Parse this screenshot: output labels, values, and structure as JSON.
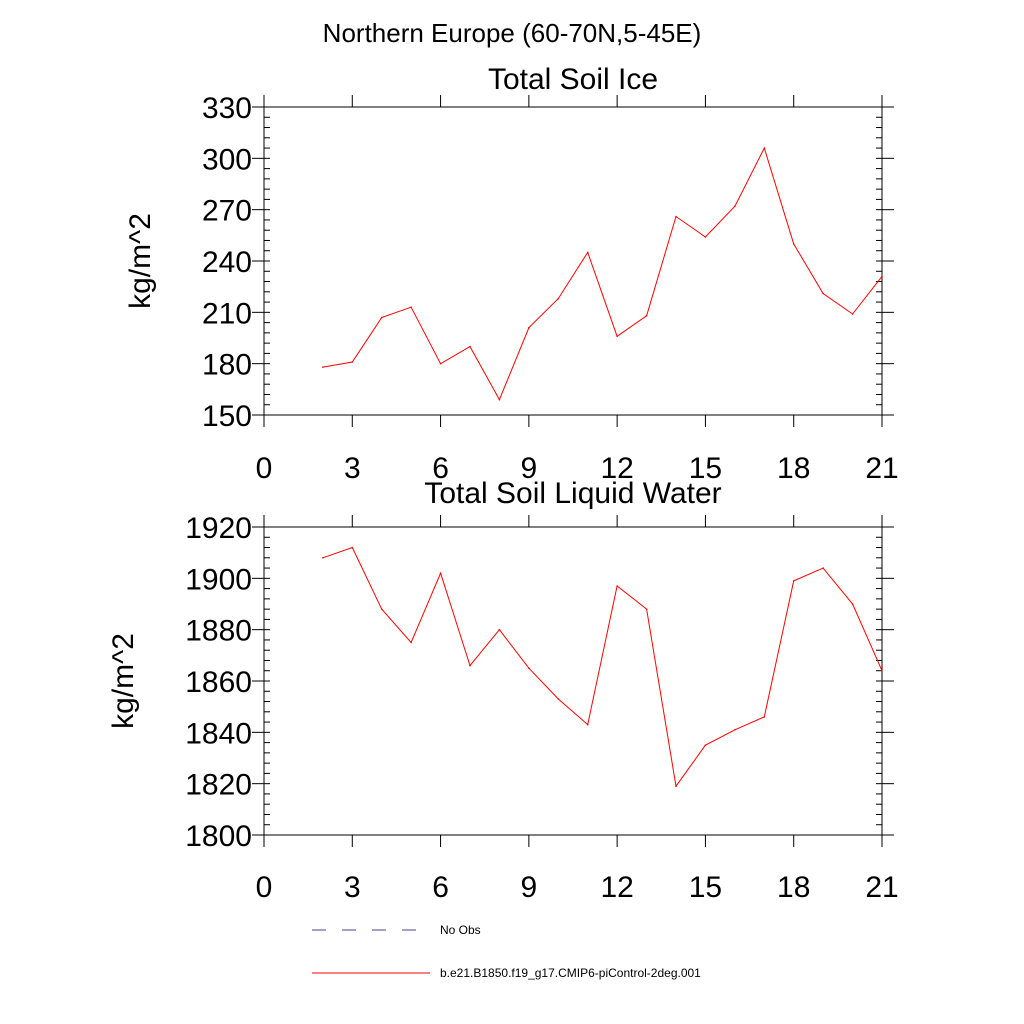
{
  "figure": {
    "title": "Northern Europe (60-70N,5-45E)"
  },
  "chart_data": [
    {
      "type": "line",
      "title": "Total Soil Ice",
      "xlabel": "",
      "ylabel": "kg/m^2",
      "xlim": [
        0,
        21
      ],
      "ylim": [
        150,
        330
      ],
      "xticks": [
        0,
        3,
        6,
        9,
        12,
        15,
        18,
        21
      ],
      "yticks": [
        150,
        180,
        210,
        240,
        270,
        300,
        330
      ],
      "x": [
        2,
        3,
        4,
        5,
        6,
        7,
        8,
        9,
        10,
        11,
        12,
        13,
        14,
        15,
        16,
        17,
        18,
        19,
        20,
        21
      ],
      "series": [
        {
          "name": "b.e21.B1850.f19_g17.CMIP6-piControl-2deg.001",
          "color": "#ff0000",
          "values": [
            178,
            181,
            207,
            213,
            180,
            190,
            159,
            201,
            218,
            245,
            196,
            208,
            266,
            254,
            272,
            306,
            250,
            221,
            209,
            231
          ]
        }
      ]
    },
    {
      "type": "line",
      "title": "Total Soil Liquid Water",
      "xlabel": "",
      "ylabel": "kg/m^2",
      "xlim": [
        0,
        21
      ],
      "ylim": [
        1800,
        1920
      ],
      "xticks": [
        0,
        3,
        6,
        9,
        12,
        15,
        18,
        21
      ],
      "yticks": [
        1800,
        1820,
        1840,
        1860,
        1880,
        1900,
        1920
      ],
      "x": [
        2,
        3,
        4,
        5,
        6,
        7,
        8,
        9,
        10,
        11,
        12,
        13,
        14,
        15,
        16,
        17,
        18,
        19,
        20,
        21
      ],
      "series": [
        {
          "name": "b.e21.B1850.f19_g17.CMIP6-piControl-2deg.001",
          "color": "#ff0000",
          "values": [
            1908,
            1912,
            1888,
            1875,
            1902,
            1866,
            1880,
            1865,
            1853,
            1843,
            1897,
            1888,
            1819,
            1835,
            1841,
            1846,
            1899,
            1904,
            1890,
            1864
          ]
        }
      ]
    }
  ],
  "legend": {
    "items": [
      {
        "label": "No Obs",
        "style": "dashed",
        "color": "#3b4a8c"
      },
      {
        "label": "b.e21.B1850.f19_g17.CMIP6-piControl-2deg.001",
        "style": "solid",
        "color": "#ff0000"
      }
    ]
  }
}
